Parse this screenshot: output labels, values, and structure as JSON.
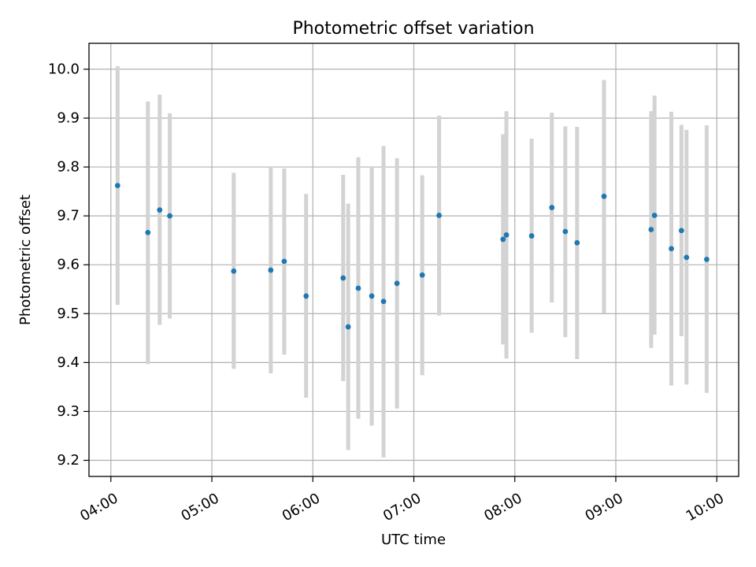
{
  "chart_data": {
    "type": "scatter",
    "title": "Photometric offset variation",
    "xlabel": "UTC time",
    "ylabel": "Photometric offset",
    "xlim": [
      "03:47",
      "10:13"
    ],
    "ylim": [
      9.167,
      10.053
    ],
    "grid": true,
    "colors": {
      "points": "#1f77b4",
      "errorbars": "#d3d3d3",
      "grid": "#b0b0b0",
      "axes": "#000000"
    },
    "x_ticks": [
      "04:00",
      "05:00",
      "06:00",
      "07:00",
      "08:00",
      "09:00",
      "10:00"
    ],
    "y_ticks": [
      "9.2",
      "9.3",
      "9.4",
      "9.5",
      "9.6",
      "9.7",
      "9.8",
      "9.9",
      "10.0"
    ],
    "series": [
      {
        "points": [
          {
            "x": "04:04",
            "y": 9.762,
            "yerr_low": 9.518,
            "yerr_high": 10.006
          },
          {
            "x": "04:22",
            "y": 9.666,
            "yerr_low": 9.397,
            "yerr_high": 9.934
          },
          {
            "x": "04:29",
            "y": 9.712,
            "yerr_low": 9.477,
            "yerr_high": 9.948
          },
          {
            "x": "04:35",
            "y": 9.7,
            "yerr_low": 9.49,
            "yerr_high": 9.91
          },
          {
            "x": "05:13",
            "y": 9.587,
            "yerr_low": 9.387,
            "yerr_high": 9.788
          },
          {
            "x": "05:35",
            "y": 9.589,
            "yerr_low": 9.378,
            "yerr_high": 9.8
          },
          {
            "x": "05:43",
            "y": 9.607,
            "yerr_low": 9.416,
            "yerr_high": 9.797
          },
          {
            "x": "05:56",
            "y": 9.536,
            "yerr_low": 9.328,
            "yerr_high": 9.745
          },
          {
            "x": "06:18",
            "y": 9.573,
            "yerr_low": 9.362,
            "yerr_high": 9.784
          },
          {
            "x": "06:21",
            "y": 9.473,
            "yerr_low": 9.221,
            "yerr_high": 9.725
          },
          {
            "x": "06:27",
            "y": 9.552,
            "yerr_low": 9.285,
            "yerr_high": 9.82
          },
          {
            "x": "06:35",
            "y": 9.536,
            "yerr_low": 9.271,
            "yerr_high": 9.8
          },
          {
            "x": "06:42",
            "y": 9.525,
            "yerr_low": 9.206,
            "yerr_high": 9.843
          },
          {
            "x": "06:50",
            "y": 9.562,
            "yerr_low": 9.306,
            "yerr_high": 9.818
          },
          {
            "x": "07:05",
            "y": 9.579,
            "yerr_low": 9.374,
            "yerr_high": 9.783
          },
          {
            "x": "07:15",
            "y": 9.701,
            "yerr_low": 9.496,
            "yerr_high": 9.905
          },
          {
            "x": "07:53",
            "y": 9.652,
            "yerr_low": 9.437,
            "yerr_high": 9.867
          },
          {
            "x": "07:55",
            "y": 9.661,
            "yerr_low": 9.408,
            "yerr_high": 9.914
          },
          {
            "x": "08:10",
            "y": 9.659,
            "yerr_low": 9.461,
            "yerr_high": 9.858
          },
          {
            "x": "08:22",
            "y": 9.717,
            "yerr_low": 9.523,
            "yerr_high": 9.911
          },
          {
            "x": "08:30",
            "y": 9.668,
            "yerr_low": 9.452,
            "yerr_high": 9.883
          },
          {
            "x": "08:37",
            "y": 9.645,
            "yerr_low": 9.407,
            "yerr_high": 9.882
          },
          {
            "x": "08:53",
            "y": 9.74,
            "yerr_low": 9.501,
            "yerr_high": 9.978
          },
          {
            "x": "09:21",
            "y": 9.672,
            "yerr_low": 9.43,
            "yerr_high": 9.914
          },
          {
            "x": "09:23",
            "y": 9.701,
            "yerr_low": 9.457,
            "yerr_high": 9.946
          },
          {
            "x": "09:33",
            "y": 9.633,
            "yerr_low": 9.353,
            "yerr_high": 9.913
          },
          {
            "x": "09:39",
            "y": 9.67,
            "yerr_low": 9.454,
            "yerr_high": 9.886
          },
          {
            "x": "09:42",
            "y": 9.615,
            "yerr_low": 9.355,
            "yerr_high": 9.876
          },
          {
            "x": "09:54",
            "y": 9.611,
            "yerr_low": 9.338,
            "yerr_high": 9.885
          }
        ]
      }
    ]
  }
}
